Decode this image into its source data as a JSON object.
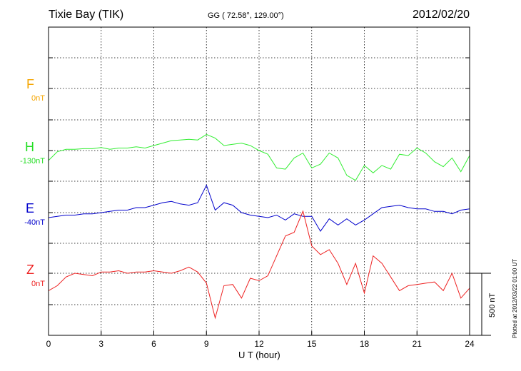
{
  "header": {
    "station": "Tixie Bay (TIK)",
    "coordinates": "GG ( 72.58°, 129.00°)",
    "date": "2012/02/20"
  },
  "footer": {
    "plotted": "Plotted at 2012/03/22 01:00 UT",
    "scale": "500 nT"
  },
  "chart_data": {
    "type": "line",
    "xlabel": "U T (hour)",
    "xlim": [
      0,
      24
    ],
    "xticks": [
      "0",
      "3",
      "6",
      "9",
      "12",
      "15",
      "18",
      "21",
      "24"
    ],
    "grid": true,
    "channels": [
      {
        "name": "F",
        "baseline_label": "0nT",
        "color": "#f5a500",
        "values": []
      },
      {
        "name": "H",
        "baseline_label": "-130nT",
        "color": "#33ee33",
        "values": [
          -80,
          -10,
          10,
          10,
          15,
          15,
          25,
          10,
          20,
          20,
          30,
          20,
          40,
          60,
          80,
          85,
          90,
          85,
          130,
          100,
          40,
          50,
          60,
          40,
          0,
          -30,
          -140,
          -150,
          -60,
          -20,
          -140,
          -110,
          -20,
          -60,
          -200,
          -240,
          -120,
          -180,
          -120,
          -150,
          -30,
          -40,
          20,
          -20,
          -90,
          -130,
          -60,
          -170,
          -40
        ]
      },
      {
        "name": "E",
        "baseline_label": "-40nT",
        "color": "#0000cc",
        "values": [
          -40,
          -30,
          -20,
          -20,
          -10,
          -10,
          0,
          10,
          20,
          20,
          40,
          40,
          60,
          80,
          90,
          70,
          60,
          80,
          220,
          20,
          80,
          60,
          0,
          -20,
          -30,
          -40,
          -20,
          -60,
          -10,
          -30,
          -30,
          -150,
          -50,
          -100,
          -50,
          -100,
          -60,
          -10,
          40,
          50,
          60,
          40,
          30,
          30,
          10,
          10,
          -10,
          20,
          30
        ]
      },
      {
        "name": "Z",
        "baseline_label": "0nT",
        "color": "#ee2222",
        "values": [
          -140,
          -100,
          -30,
          0,
          -10,
          -20,
          10,
          10,
          20,
          0,
          10,
          10,
          20,
          10,
          0,
          20,
          50,
          10,
          -80,
          -360,
          -100,
          -90,
          -200,
          -40,
          -60,
          -20,
          140,
          300,
          330,
          500,
          220,
          150,
          190,
          80,
          -90,
          80,
          -160,
          140,
          80,
          -30,
          -140,
          -100,
          -90,
          -80,
          -70,
          -140,
          0,
          -200,
          -120
        ]
      }
    ]
  }
}
